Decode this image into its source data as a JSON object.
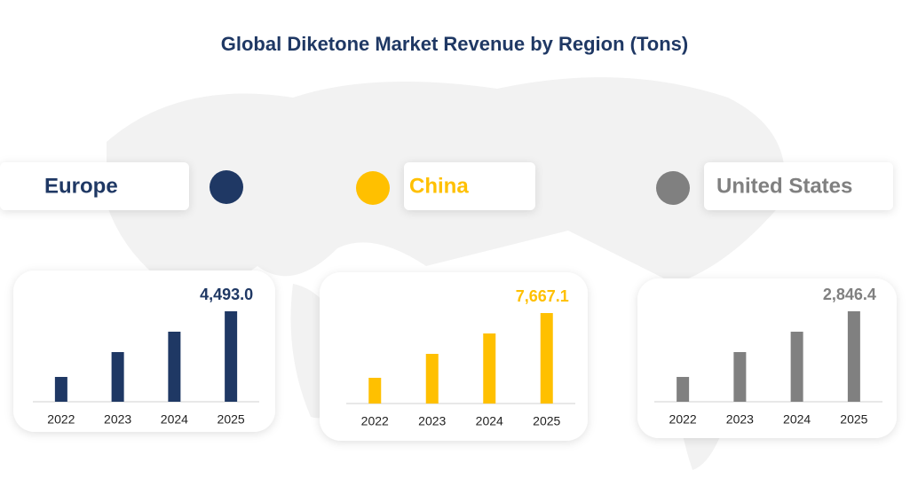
{
  "title": "Global Diketone Market Revenue by Region (Tons)",
  "chart_data": [
    {
      "type": "bar",
      "title": "Europe",
      "color": "#1f3864",
      "categories": [
        "2022",
        "2023",
        "2024",
        "2025"
      ],
      "values": [
        1233,
        2467,
        3480,
        4493
      ],
      "value_labels": [
        null,
        null,
        null,
        "4,493.0"
      ]
    },
    {
      "type": "bar",
      "title": "China",
      "color": "#ffc000",
      "categories": [
        "2022",
        "2023",
        "2024",
        "2025"
      ],
      "values": [
        2180,
        4209,
        5938,
        7667.1
      ],
      "value_labels": [
        null,
        null,
        null,
        "7,667.1"
      ]
    },
    {
      "type": "bar",
      "title": "United States",
      "color": "#808080",
      "categories": [
        "2022",
        "2023",
        "2024",
        "2025"
      ],
      "values": [
        781,
        1563,
        2204,
        2846.4
      ],
      "value_labels": [
        null,
        null,
        null,
        "2,846.4"
      ]
    }
  ]
}
